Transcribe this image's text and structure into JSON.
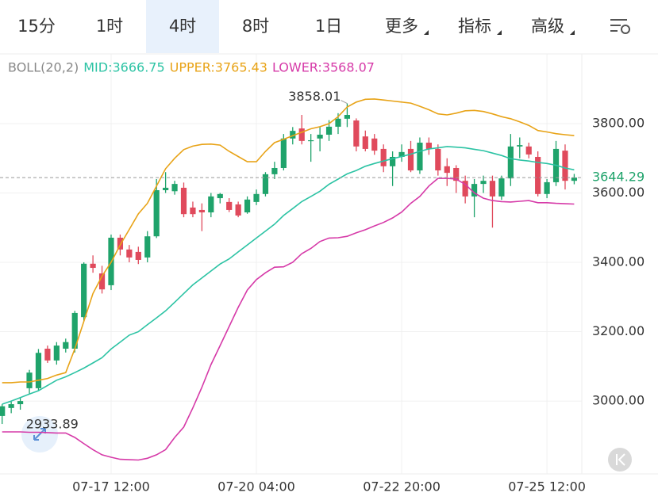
{
  "tabs": [
    "15分",
    "1时",
    "4时",
    "8时",
    "1日",
    "更多",
    "指标",
    "高级"
  ],
  "selected_tab": 2,
  "chart_data": {
    "type": "candlestick",
    "indicator": "BOLL(20,2)",
    "categories": [
      null,
      null,
      null,
      null,
      null,
      null,
      null,
      null,
      null,
      null,
      null,
      null,
      "07-17 12:00",
      null,
      null,
      null,
      null,
      null,
      null,
      null,
      null,
      null,
      null,
      null,
      null,
      null,
      null,
      null,
      "07-20 04:00",
      null,
      null,
      null,
      null,
      null,
      null,
      null,
      null,
      null,
      null,
      null,
      null,
      null,
      null,
      null,
      "07-22 20:00",
      null,
      null,
      null,
      null,
      null,
      null,
      null,
      null,
      null,
      null,
      null,
      null,
      null,
      null,
      null,
      "07-25 12:00",
      null,
      null,
      null
    ],
    "open": [
      2957,
      2980,
      2991,
      3037,
      3037,
      3151,
      3117,
      3151,
      3151,
      3242,
      3396,
      3368,
      3334,
      3471,
      3437,
      3430,
      3414,
      3475,
      3608,
      3605,
      3615,
      3558,
      3551,
      3544,
      3585,
      3574,
      3567,
      3544,
      3574,
      3597,
      3654,
      3672,
      3757,
      3786,
      3750,
      3757,
      3768,
      3791,
      3814,
      3809,
      3763,
      3757,
      3727,
      3677,
      3704,
      3727,
      3665,
      3745,
      3727,
      3677,
      3672,
      3635,
      3590,
      3626,
      3635,
      3590,
      3642,
      3734,
      3734,
      3704,
      3597,
      3631,
      3722,
      3635
    ],
    "high": [
      2991,
      3000,
      3010,
      3090,
      3150,
      3160,
      3170,
      3180,
      3260,
      3400,
      3420,
      3390,
      3480,
      3480,
      3450,
      3445,
      3490,
      3640,
      3660,
      3635,
      3630,
      3575,
      3570,
      3600,
      3600,
      3585,
      3575,
      3590,
      3610,
      3660,
      3690,
      3770,
      3790,
      3825,
      3770,
      3790,
      3810,
      3830,
      3858.01,
      3815,
      3780,
      3770,
      3740,
      3720,
      3740,
      3750,
      3760,
      3760,
      3740,
      3700,
      3680,
      3650,
      3640,
      3650,
      3650,
      3650,
      3770,
      3760,
      3745,
      3720,
      3640,
      3750,
      3740,
      3655
    ],
    "low": [
      2933.89,
      2965,
      2975,
      3020,
      3030,
      3110,
      3105,
      3140,
      3140,
      3230,
      3370,
      3310,
      3320,
      3420,
      3400,
      3395,
      3400,
      3470,
      3600,
      3595,
      3530,
      3530,
      3490,
      3530,
      3570,
      3545,
      3530,
      3540,
      3565,
      3590,
      3640,
      3665,
      3740,
      3740,
      3690,
      3720,
      3750,
      3770,
      3790,
      3720,
      3720,
      3710,
      3660,
      3620,
      3690,
      3660,
      3655,
      3710,
      3650,
      3620,
      3600,
      3570,
      3530,
      3600,
      3500,
      3580,
      3620,
      3700,
      3700,
      3590,
      3585,
      3620,
      3610,
      3625
    ],
    "close": [
      2985,
      2991,
      3000,
      3082,
      3139,
      3117,
      3160,
      3170,
      3254,
      3396,
      3384,
      3322,
      3471,
      3437,
      3414,
      3407,
      3475,
      3608,
      3615,
      3626,
      3539,
      3539,
      3544,
      3590,
      3597,
      3551,
      3535,
      3581,
      3597,
      3654,
      3672,
      3757,
      3779,
      3750,
      3752,
      3768,
      3791,
      3814,
      3825,
      3734,
      3727,
      3722,
      3677,
      3704,
      3718,
      3665,
      3745,
      3727,
      3665,
      3658,
      3635,
      3590,
      3626,
      3635,
      3590,
      3642,
      3734,
      3738,
      3711,
      3597,
      3631,
      3727,
      3635,
      3644.29
    ],
    "up_color": "#1fa36b",
    "down_color": "#e04a5c",
    "series": [
      {
        "name": "MID:3666.75",
        "color": "#2cc3a4",
        "values": [
          2991,
          3000,
          3010,
          3020,
          3030,
          3045,
          3060,
          3070,
          3082,
          3095,
          3110,
          3125,
          3150,
          3170,
          3190,
          3200,
          3220,
          3240,
          3260,
          3285,
          3310,
          3335,
          3355,
          3375,
          3395,
          3410,
          3430,
          3450,
          3470,
          3490,
          3510,
          3535,
          3555,
          3575,
          3590,
          3605,
          3625,
          3640,
          3655,
          3665,
          3677,
          3685,
          3692,
          3699,
          3705,
          3712,
          3720,
          3727,
          3730,
          3734,
          3732,
          3730,
          3726,
          3722,
          3715,
          3708,
          3699,
          3695,
          3692,
          3688,
          3685,
          3680,
          3672,
          3666.75
        ]
      },
      {
        "name": "UPPER:3765.43",
        "color": "#e8a317",
        "values": [
          3053,
          3053,
          3055,
          3055,
          3060,
          3065,
          3075,
          3082,
          3150,
          3230,
          3310,
          3360,
          3400,
          3450,
          3495,
          3540,
          3570,
          3620,
          3670,
          3700,
          3725,
          3735,
          3740,
          3741,
          3738,
          3720,
          3705,
          3690,
          3690,
          3720,
          3745,
          3755,
          3765,
          3775,
          3785,
          3791,
          3800,
          3820,
          3848,
          3862,
          3870,
          3871,
          3868,
          3865,
          3862,
          3859,
          3850,
          3840,
          3828,
          3825,
          3830,
          3837,
          3838,
          3835,
          3828,
          3820,
          3814,
          3805,
          3795,
          3780,
          3776,
          3771,
          3768,
          3765.43
        ]
      },
      {
        "name": "LOWER:3568.07",
        "color": "#d63aa8",
        "values": [
          2911,
          2911,
          2911,
          2910,
          2910,
          2909,
          2908,
          2908,
          2895,
          2877,
          2860,
          2845,
          2838,
          2832,
          2831,
          2830,
          2835,
          2845,
          2860,
          2895,
          2925,
          2980,
          3040,
          3105,
          3160,
          3215,
          3270,
          3320,
          3350,
          3370,
          3386,
          3387,
          3400,
          3425,
          3440,
          3460,
          3470,
          3471,
          3475,
          3485,
          3494,
          3505,
          3515,
          3528,
          3545,
          3570,
          3590,
          3620,
          3642,
          3642,
          3640,
          3625,
          3600,
          3585,
          3578,
          3575,
          3574,
          3576,
          3578,
          3572,
          3572,
          3570,
          3569,
          3568.07
        ]
      }
    ],
    "ylim": [
      2790,
      4001
    ],
    "yticks": [
      {
        "value": 3000,
        "label": "3000.00"
      },
      {
        "value": 3200,
        "label": "3200.00"
      },
      {
        "value": 3400,
        "label": "3400.00"
      },
      {
        "value": 3600,
        "label": "3600.00"
      },
      {
        "value": 3800,
        "label": "3800.00"
      }
    ],
    "max_annotation": {
      "index": 38,
      "value": 3858.01
    },
    "min_annotation": {
      "index": 0,
      "value": 2933.89
    },
    "last_price": 3644.29,
    "grid": true
  }
}
